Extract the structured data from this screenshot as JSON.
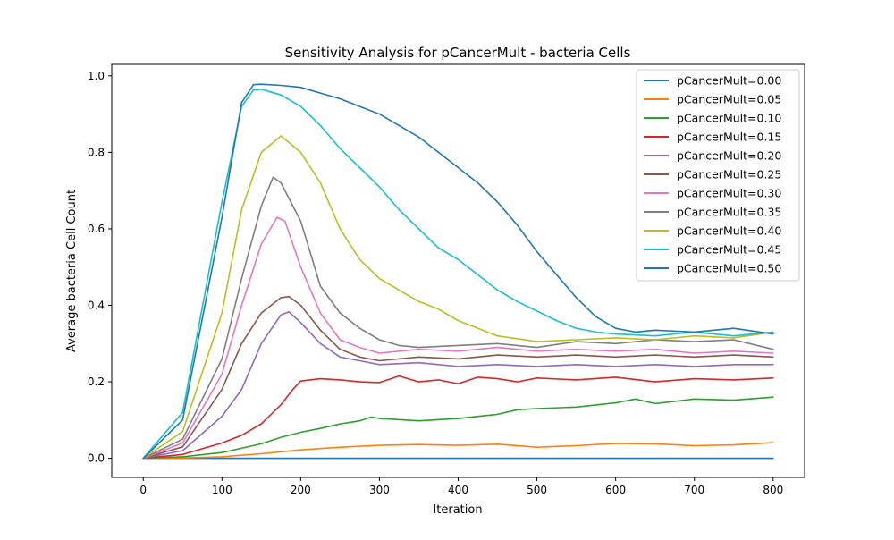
{
  "chart_data": {
    "type": "line",
    "title": "Sensitivity Analysis for pCancerMult - bacteria Cells",
    "xlabel": "Iteration",
    "ylabel": "Average bacteria Cell Count",
    "xlim": [
      -40,
      840
    ],
    "ylim": [
      -0.05,
      1.03
    ],
    "xticks": [
      0,
      100,
      200,
      300,
      400,
      500,
      600,
      700,
      800
    ],
    "yticks": [
      0.0,
      0.2,
      0.4,
      0.6,
      0.8,
      1.0
    ],
    "ytick_labels": [
      "0.0",
      "0.2",
      "0.4",
      "0.6",
      "0.8",
      "1.0"
    ],
    "grid": false,
    "legend_position": "top-right",
    "series": [
      {
        "name": "pCancerMult=0.00",
        "color": "#1f77b4",
        "x": [
          0,
          100,
          200,
          300,
          400,
          500,
          600,
          700,
          800
        ],
        "y": [
          0.0,
          0.0,
          0.0,
          0.0,
          0.0,
          0.0,
          0.0,
          0.0,
          0.0
        ]
      },
      {
        "name": "pCancerMult=0.05",
        "color": "#ff7f0e",
        "x": [
          0,
          50,
          100,
          150,
          200,
          250,
          300,
          350,
          400,
          450,
          500,
          550,
          600,
          650,
          700,
          750,
          800
        ],
        "y": [
          0.0,
          0.001,
          0.004,
          0.012,
          0.022,
          0.029,
          0.034,
          0.036,
          0.034,
          0.037,
          0.029,
          0.033,
          0.039,
          0.038,
          0.033,
          0.035,
          0.041
        ]
      },
      {
        "name": "pCancerMult=0.10",
        "color": "#2ca02c",
        "x": [
          0,
          50,
          100,
          150,
          175,
          200,
          225,
          250,
          275,
          290,
          300,
          350,
          400,
          450,
          475,
          500,
          550,
          600,
          625,
          650,
          700,
          750,
          800
        ],
        "y": [
          0.0,
          0.004,
          0.015,
          0.038,
          0.055,
          0.068,
          0.078,
          0.09,
          0.098,
          0.108,
          0.104,
          0.098,
          0.104,
          0.115,
          0.127,
          0.13,
          0.134,
          0.145,
          0.155,
          0.143,
          0.155,
          0.152,
          0.16
        ]
      },
      {
        "name": "pCancerMult=0.15",
        "color": "#d62728",
        "x": [
          0,
          50,
          100,
          125,
          150,
          175,
          190,
          200,
          225,
          250,
          275,
          300,
          325,
          350,
          375,
          400,
          425,
          450,
          475,
          500,
          550,
          600,
          650,
          700,
          750,
          800
        ],
        "y": [
          0.0,
          0.01,
          0.04,
          0.06,
          0.09,
          0.14,
          0.18,
          0.202,
          0.208,
          0.205,
          0.2,
          0.198,
          0.215,
          0.2,
          0.205,
          0.195,
          0.212,
          0.208,
          0.2,
          0.21,
          0.205,
          0.212,
          0.2,
          0.208,
          0.205,
          0.21
        ]
      },
      {
        "name": "pCancerMult=0.20",
        "color": "#9467bd",
        "x": [
          0,
          50,
          100,
          125,
          150,
          175,
          185,
          200,
          225,
          250,
          275,
          300,
          350,
          400,
          450,
          500,
          550,
          600,
          650,
          700,
          750,
          800
        ],
        "y": [
          0.0,
          0.02,
          0.11,
          0.18,
          0.3,
          0.375,
          0.383,
          0.355,
          0.3,
          0.265,
          0.255,
          0.245,
          0.25,
          0.24,
          0.245,
          0.24,
          0.245,
          0.24,
          0.245,
          0.24,
          0.245,
          0.245
        ]
      },
      {
        "name": "pCancerMult=0.25",
        "color": "#8c564b",
        "x": [
          0,
          50,
          100,
          125,
          150,
          175,
          185,
          200,
          225,
          250,
          275,
          300,
          350,
          400,
          450,
          500,
          550,
          600,
          650,
          700,
          750,
          800
        ],
        "y": [
          0.0,
          0.03,
          0.18,
          0.3,
          0.38,
          0.42,
          0.423,
          0.4,
          0.335,
          0.285,
          0.265,
          0.255,
          0.265,
          0.26,
          0.27,
          0.265,
          0.27,
          0.265,
          0.27,
          0.265,
          0.27,
          0.265
        ]
      },
      {
        "name": "pCancerMult=0.30",
        "color": "#e377c2",
        "x": [
          0,
          50,
          100,
          125,
          150,
          170,
          180,
          200,
          225,
          250,
          275,
          300,
          350,
          400,
          450,
          500,
          550,
          600,
          650,
          700,
          750,
          800
        ],
        "y": [
          0.0,
          0.04,
          0.22,
          0.4,
          0.56,
          0.63,
          0.62,
          0.5,
          0.38,
          0.31,
          0.29,
          0.275,
          0.285,
          0.28,
          0.29,
          0.28,
          0.285,
          0.28,
          0.285,
          0.275,
          0.28,
          0.275
        ]
      },
      {
        "name": "pCancerMult=0.35",
        "color": "#7f7f7f",
        "x": [
          0,
          50,
          100,
          125,
          150,
          165,
          175,
          200,
          225,
          250,
          275,
          300,
          325,
          350,
          400,
          450,
          500,
          550,
          600,
          650,
          700,
          750,
          800
        ],
        "y": [
          0.0,
          0.05,
          0.26,
          0.47,
          0.66,
          0.735,
          0.72,
          0.62,
          0.45,
          0.38,
          0.34,
          0.31,
          0.295,
          0.29,
          0.295,
          0.3,
          0.29,
          0.305,
          0.3,
          0.31,
          0.305,
          0.31,
          0.285
        ]
      },
      {
        "name": "pCancerMult=0.40",
        "color": "#bcbd22",
        "x": [
          0,
          50,
          100,
          125,
          150,
          175,
          200,
          225,
          250,
          275,
          300,
          325,
          350,
          375,
          400,
          425,
          450,
          500,
          550,
          600,
          650,
          700,
          750,
          800
        ],
        "y": [
          0.0,
          0.07,
          0.38,
          0.65,
          0.8,
          0.843,
          0.8,
          0.72,
          0.6,
          0.52,
          0.47,
          0.44,
          0.41,
          0.39,
          0.36,
          0.34,
          0.32,
          0.305,
          0.31,
          0.315,
          0.31,
          0.32,
          0.315,
          0.33
        ]
      },
      {
        "name": "pCancerMult=0.45",
        "color": "#17becf",
        "x": [
          0,
          50,
          100,
          125,
          140,
          150,
          175,
          200,
          225,
          250,
          275,
          300,
          325,
          350,
          375,
          400,
          425,
          450,
          475,
          500,
          525,
          550,
          575,
          600,
          650,
          700,
          750,
          800
        ],
        "y": [
          0.0,
          0.12,
          0.67,
          0.92,
          0.963,
          0.965,
          0.95,
          0.92,
          0.87,
          0.81,
          0.76,
          0.71,
          0.65,
          0.6,
          0.55,
          0.52,
          0.48,
          0.44,
          0.41,
          0.385,
          0.36,
          0.34,
          0.33,
          0.325,
          0.32,
          0.33,
          0.32,
          0.33
        ]
      },
      {
        "name": "pCancerMult=0.50",
        "color": "#1f77b4",
        "x": [
          0,
          50,
          100,
          125,
          140,
          150,
          175,
          200,
          225,
          250,
          275,
          300,
          325,
          350,
          375,
          400,
          425,
          450,
          475,
          500,
          525,
          550,
          575,
          600,
          625,
          650,
          700,
          750,
          800
        ],
        "y": [
          0.0,
          0.1,
          0.63,
          0.93,
          0.977,
          0.978,
          0.975,
          0.97,
          0.955,
          0.94,
          0.92,
          0.9,
          0.87,
          0.84,
          0.8,
          0.76,
          0.72,
          0.67,
          0.61,
          0.54,
          0.48,
          0.42,
          0.37,
          0.34,
          0.33,
          0.335,
          0.33,
          0.34,
          0.325
        ]
      }
    ]
  }
}
